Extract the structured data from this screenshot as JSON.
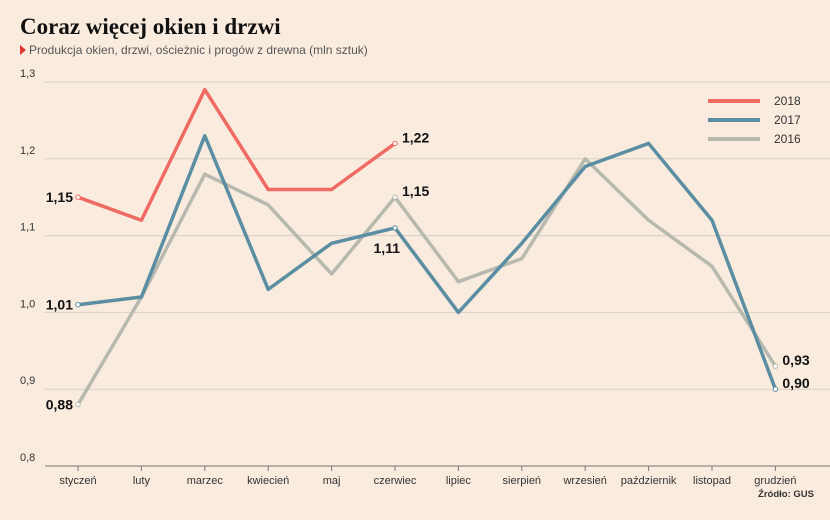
{
  "header": {
    "title": "Coraz więcej okien i drzwi",
    "subtitle": "Produkcja okien, drzwi, ościeżnic i progów z drewna (mln sztuk)"
  },
  "footer": {
    "source": "Źródło: GUS"
  },
  "chart_data": {
    "type": "line",
    "categories": [
      "styczeń",
      "luty",
      "marzec",
      "kwiecień",
      "maj",
      "czerwiec",
      "lipiec",
      "sierpień",
      "wrzesień",
      "październik",
      "listopad",
      "grudzień"
    ],
    "ylim": [
      0.8,
      1.3
    ],
    "yticks": [
      0.8,
      0.9,
      1.0,
      1.1,
      1.2,
      1.3
    ],
    "ytick_labels": [
      "0,8",
      "0,9",
      "1,0",
      "1,1",
      "1,2",
      "1,3"
    ],
    "grid": true,
    "legend": "top-right",
    "series": [
      {
        "name": "2018",
        "color": "#ee6a63",
        "values": [
          1.15,
          1.12,
          1.29,
          1.16,
          1.16,
          1.22,
          null,
          null,
          null,
          null,
          null,
          null
        ]
      },
      {
        "name": "2017",
        "color": "#5b8ea2",
        "values": [
          1.01,
          1.02,
          1.23,
          1.03,
          1.09,
          1.11,
          1.0,
          1.09,
          1.19,
          1.22,
          1.12,
          0.9
        ]
      },
      {
        "name": "2016",
        "color": "#b8b9ae",
        "values": [
          0.88,
          1.02,
          1.18,
          1.14,
          1.05,
          1.15,
          1.04,
          1.07,
          1.2,
          1.12,
          1.06,
          0.93
        ]
      }
    ],
    "annotations": [
      {
        "series": "2018",
        "index": 0,
        "text": "1,15",
        "side": "left"
      },
      {
        "series": "2017",
        "index": 0,
        "text": "1,01",
        "side": "left"
      },
      {
        "series": "2016",
        "index": 0,
        "text": "0,88",
        "side": "left"
      },
      {
        "series": "2018",
        "index": 5,
        "text": "1,22",
        "side": "right"
      },
      {
        "series": "2016",
        "index": 5,
        "text": "1,15",
        "side": "right"
      },
      {
        "series": "2017",
        "index": 5,
        "text": "1,11",
        "side": "below"
      },
      {
        "series": "2016",
        "index": 11,
        "text": "0,93",
        "side": "right"
      },
      {
        "series": "2017",
        "index": 11,
        "text": "0,90",
        "side": "right"
      }
    ]
  }
}
